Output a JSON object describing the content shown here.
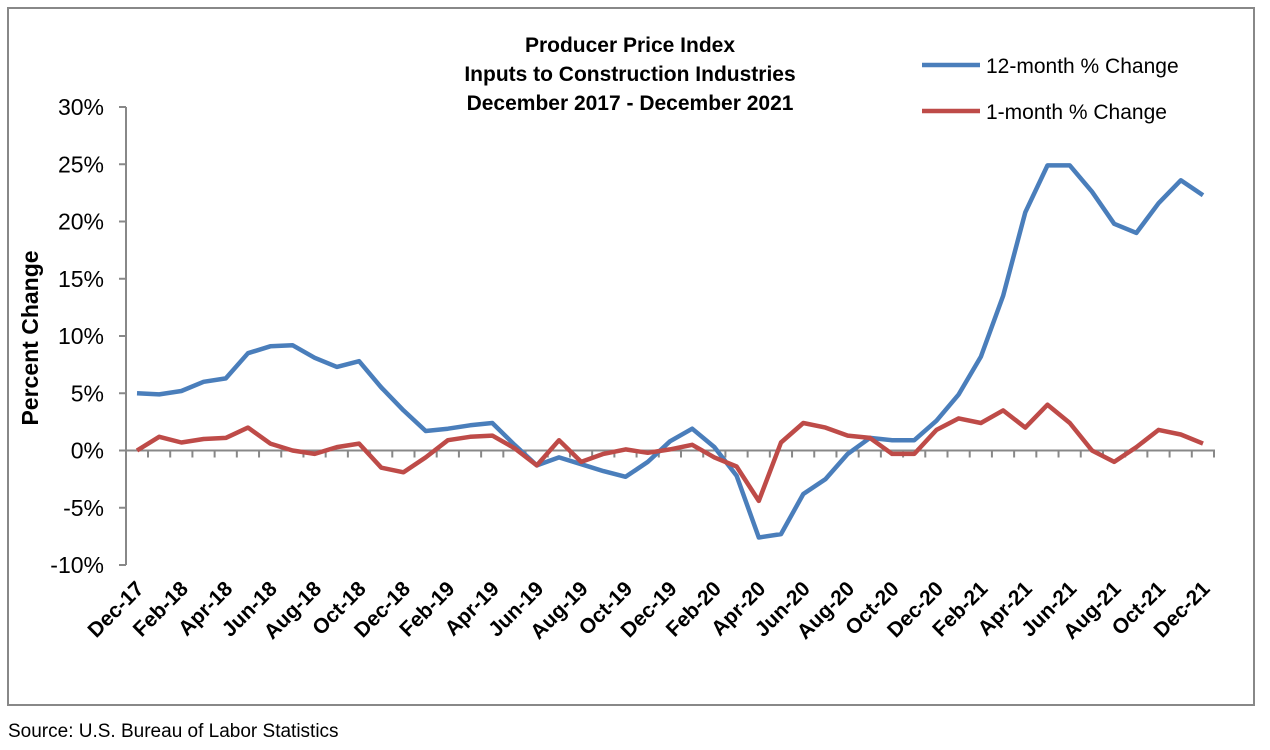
{
  "chart_data": {
    "type": "line",
    "title_lines": [
      "Producer Price Index",
      "Inputs to Construction Industries",
      "December 2017 - December 2021"
    ],
    "y_label": "Percent Change",
    "source": "Source: U.S. Bureau of Labor Statistics",
    "legend_position": "top-right",
    "categories": [
      "Dec-17",
      null,
      "Feb-18",
      null,
      "Apr-18",
      null,
      "Jun-18",
      null,
      "Aug-18",
      null,
      "Oct-18",
      null,
      "Dec-18",
      null,
      "Feb-19",
      null,
      "Apr-19",
      null,
      "Jun-19",
      null,
      "Aug-19",
      null,
      "Oct-19",
      null,
      "Dec-19",
      null,
      "Feb-20",
      null,
      "Apr-20",
      null,
      "Jun-20",
      null,
      "Aug-20",
      null,
      "Oct-20",
      null,
      "Dec-20",
      null,
      "Feb-21",
      null,
      "Apr-21",
      null,
      "Jun-21",
      null,
      "Aug-21",
      null,
      "Oct-21",
      null,
      "Dec-21"
    ],
    "series": [
      {
        "name": "12-month % Change",
        "color": "#4a7ebb",
        "values": [
          5.0,
          4.9,
          5.2,
          6.0,
          6.3,
          8.5,
          9.1,
          9.2,
          8.1,
          7.3,
          7.8,
          5.5,
          3.5,
          1.7,
          1.9,
          2.2,
          2.4,
          0.5,
          -1.3,
          -0.6,
          -1.2,
          -1.8,
          -2.3,
          -1.0,
          0.8,
          1.9,
          0.3,
          -2.2,
          -7.6,
          -7.3,
          -3.8,
          -2.5,
          -0.3,
          1.1,
          0.9,
          0.9,
          2.6,
          4.9,
          8.2,
          13.5,
          20.8,
          24.9,
          24.9,
          22.6,
          19.8,
          19.0,
          21.6,
          23.6,
          22.3
        ]
      },
      {
        "name": "1-month % Change",
        "color": "#be4b48",
        "values": [
          0.0,
          1.2,
          0.7,
          1.0,
          1.1,
          2.0,
          0.6,
          0.0,
          -0.3,
          0.3,
          0.6,
          -1.5,
          -1.9,
          -0.6,
          0.9,
          1.2,
          1.3,
          0.2,
          -1.3,
          0.9,
          -1.0,
          -0.3,
          0.1,
          -0.2,
          0.1,
          0.5,
          -0.6,
          -1.4,
          -4.4,
          0.7,
          2.4,
          2.0,
          1.3,
          1.1,
          -0.3,
          -0.3,
          1.8,
          2.8,
          2.4,
          3.5,
          2.0,
          4.0,
          2.4,
          0.0,
          -1.0,
          0.3,
          1.8,
          1.4,
          0.6
        ]
      }
    ],
    "ylim": [
      -10,
      30
    ],
    "yticks": [
      {
        "value": -10,
        "label": "-10%"
      },
      {
        "value": -5,
        "label": "-5%"
      },
      {
        "value": 0,
        "label": "0%"
      },
      {
        "value": 5,
        "label": "5%"
      },
      {
        "value": 10,
        "label": "10%"
      },
      {
        "value": 15,
        "label": "15%"
      },
      {
        "value": 20,
        "label": "20%"
      },
      {
        "value": 25,
        "label": "25%"
      },
      {
        "value": 30,
        "label": "30%"
      }
    ],
    "grid": false
  }
}
